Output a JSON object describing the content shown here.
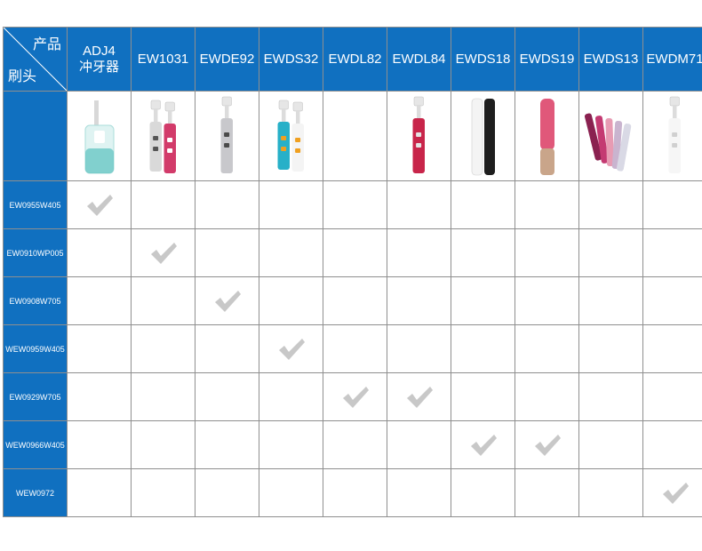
{
  "corner": {
    "top_right": "产品",
    "bottom_left": "刷头"
  },
  "products": [
    {
      "name": "ADJ4",
      "sub": "冲牙器",
      "icon": "water-flosser-icon",
      "colors": [
        "#dff3f2",
        "#58c1bf"
      ]
    },
    {
      "name": "EW1031",
      "sub": "",
      "icon": "pink-toothbrush-pair-icon",
      "colors": [
        "#d23b6a",
        "#d9d9d9"
      ]
    },
    {
      "name": "EWDE92",
      "sub": "",
      "icon": "silver-toothbrush-icon",
      "colors": [
        "#c8c8cc",
        "#4a4a4a"
      ]
    },
    {
      "name": "EWDS32",
      "sub": "",
      "icon": "teal-toothbrush-pair-icon",
      "colors": [
        "#27b0c8",
        "#f0a020"
      ]
    },
    {
      "name": "EWDL82",
      "sub": "",
      "icon": "",
      "colors": []
    },
    {
      "name": "EWDL84",
      "sub": "",
      "icon": "red-toothbrush-icon",
      "colors": [
        "#c8254a",
        "#e4e4e4"
      ]
    },
    {
      "name": "EWDS18",
      "sub": "",
      "icon": "black-white-toothbrush-icon",
      "colors": [
        "#f4f4f4",
        "#1e1e1e"
      ]
    },
    {
      "name": "EWDS19",
      "sub": "",
      "icon": "pink-gold-toothbrush-icon",
      "colors": [
        "#e0587a",
        "#c9a58a"
      ]
    },
    {
      "name": "EWDS13",
      "sub": "",
      "icon": "multicolor-toothbrush-set-icon",
      "colors": [
        "#b8356a",
        "#e09cb0"
      ]
    },
    {
      "name": "EWDM71",
      "sub": "",
      "icon": "white-toothbrush-icon",
      "colors": [
        "#f6f6f6",
        "#d0d0d0"
      ]
    }
  ],
  "brush_heads": [
    {
      "label": "EW0955W405",
      "compatible": [
        0
      ]
    },
    {
      "label": "EW0910WP005",
      "compatible": [
        1
      ]
    },
    {
      "label": "EW0908W705",
      "compatible": [
        2
      ]
    },
    {
      "label": "WEW0959W405",
      "compatible": [
        3
      ]
    },
    {
      "label": "EW0929W705",
      "compatible": [
        4,
        5
      ]
    },
    {
      "label": "WEW0966W405",
      "compatible": [
        6,
        7
      ]
    },
    {
      "label": "WEW0972",
      "compatible": [
        9
      ]
    }
  ],
  "colors": {
    "header_blue": "#1070c0",
    "grid_line": "#8f8f8f",
    "check": "#c8c8c8"
  }
}
